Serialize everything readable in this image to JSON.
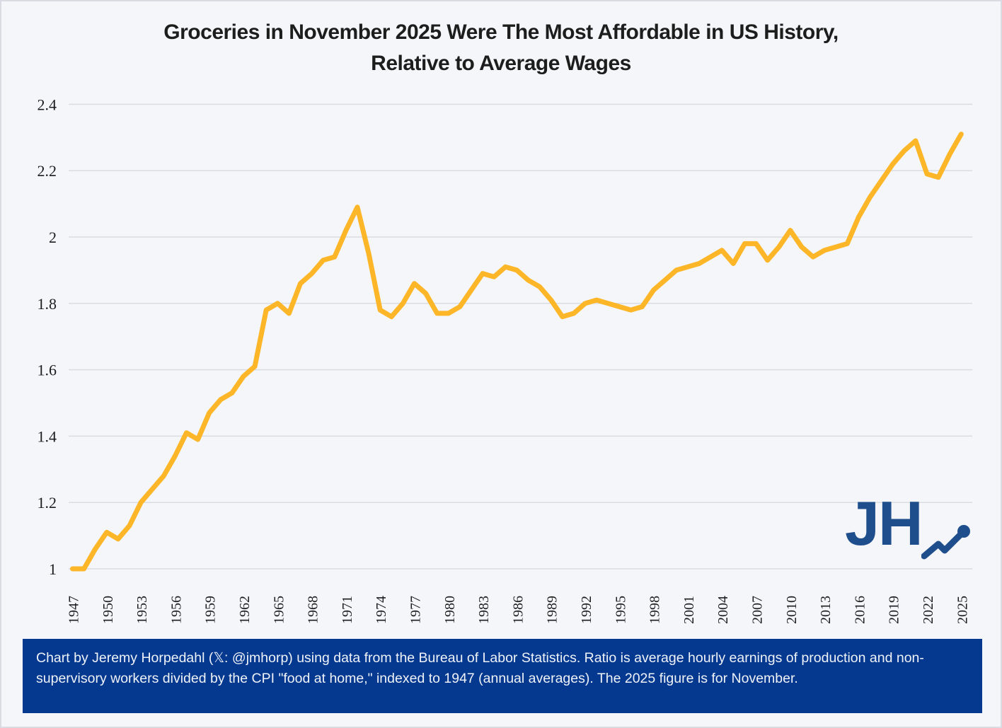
{
  "title": {
    "lines": [
      "Groceries in November 2025 Were The Most Affordable in US History,",
      "Relative to Average Wages"
    ]
  },
  "footer": {
    "text": "Chart by Jeremy Horpedahl (𝕏: @jmhorp) using data from the Bureau of Labor Statistics. Ratio is average hourly earnings of production and non-supervisory workers divided by the CPI \"food at home,\" indexed to 1947 (annual averages). The 2025 figure is for November."
  },
  "logo": {
    "text": "JH"
  },
  "colors": {
    "line": "#fcb628",
    "grid": "#d9dce1",
    "background": "#f4f6f9",
    "tick_label": "#1c1c1c",
    "title_text": "#1d1d1d",
    "footer_background": "#04398f",
    "footer_text": "#eff2f8",
    "logo_navy": "#1f4e8c"
  },
  "chart_data": {
    "type": "line",
    "title": "Groceries in November 2025 Were The Most Affordable in US History, Relative to Average Wages",
    "xlabel": "",
    "ylabel": "",
    "grid": "horizontal",
    "legend": "none",
    "ylim": [
      1.0,
      2.4
    ],
    "yticks": [
      1,
      1.2,
      1.4,
      1.6,
      1.8,
      2,
      2.2,
      2.4
    ],
    "ytick_labels": [
      "1",
      "1.2",
      "1.4",
      "1.6",
      "1.8",
      "2",
      "2.2",
      "2.4"
    ],
    "xticks": [
      1947,
      1950,
      1953,
      1956,
      1959,
      1962,
      1965,
      1968,
      1971,
      1974,
      1977,
      1980,
      1983,
      1986,
      1989,
      1992,
      1995,
      1998,
      2001,
      2004,
      2007,
      2010,
      2013,
      2016,
      2019,
      2022,
      2025
    ],
    "line_color": "#fcb628",
    "series_name": "Ratio of average hourly earnings to CPI food at home (1947 = 1)",
    "x": [
      1947,
      1948,
      1949,
      1950,
      1951,
      1952,
      1953,
      1954,
      1955,
      1956,
      1957,
      1958,
      1959,
      1960,
      1961,
      1962,
      1963,
      1964,
      1965,
      1966,
      1967,
      1968,
      1969,
      1970,
      1971,
      1972,
      1973,
      1974,
      1975,
      1976,
      1977,
      1978,
      1979,
      1980,
      1981,
      1982,
      1983,
      1984,
      1985,
      1986,
      1987,
      1988,
      1989,
      1990,
      1991,
      1992,
      1993,
      1994,
      1995,
      1996,
      1997,
      1998,
      1999,
      2000,
      2001,
      2002,
      2003,
      2004,
      2005,
      2006,
      2007,
      2008,
      2009,
      2010,
      2011,
      2012,
      2013,
      2014,
      2015,
      2016,
      2017,
      2018,
      2019,
      2020,
      2021,
      2022,
      2023,
      2024,
      2025
    ],
    "values": [
      1.0,
      1.0,
      1.06,
      1.11,
      1.09,
      1.13,
      1.2,
      1.24,
      1.28,
      1.34,
      1.41,
      1.39,
      1.47,
      1.51,
      1.53,
      1.58,
      1.61,
      1.78,
      1.8,
      1.77,
      1.86,
      1.89,
      1.93,
      1.94,
      2.02,
      2.09,
      1.95,
      1.78,
      1.76,
      1.8,
      1.86,
      1.83,
      1.77,
      1.77,
      1.79,
      1.84,
      1.89,
      1.88,
      1.91,
      1.9,
      1.87,
      1.85,
      1.81,
      1.76,
      1.77,
      1.8,
      1.81,
      1.8,
      1.79,
      1.78,
      1.79,
      1.84,
      1.87,
      1.9,
      1.91,
      1.92,
      1.94,
      1.96,
      1.92,
      1.98,
      1.98,
      1.93,
      1.97,
      2.02,
      1.97,
      1.94,
      1.96,
      1.97,
      1.98,
      2.06,
      2.12,
      2.17,
      2.22,
      2.26,
      2.29,
      2.19,
      2.18,
      2.25,
      2.31
    ]
  }
}
